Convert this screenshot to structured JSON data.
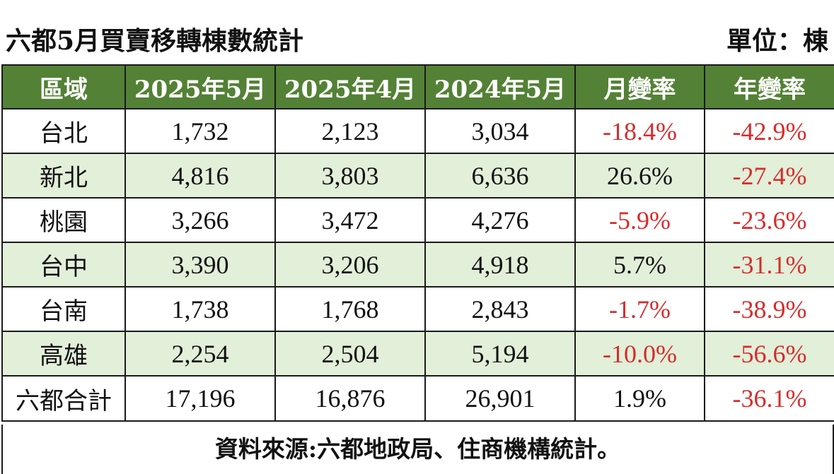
{
  "title": "六都5月買賣移轉棟數統計",
  "unit": "單位：棟",
  "source": "資料來源:六都地政局、住商機構統計。",
  "colors": {
    "header_bg": "#538135",
    "header_text": "#ffffff",
    "alt_row_bg": "#e2efd9",
    "negative": "#d72c2c",
    "text": "#111111"
  },
  "chart_data": {
    "type": "table",
    "title": "六都5月買賣移轉棟數統計",
    "unit": "單位：棟",
    "columns": [
      "區域",
      "2025年5月",
      "2025年4月",
      "2024年5月",
      "月變率",
      "年變率"
    ],
    "rows": [
      {
        "region": "台北",
        "may2025": "1,732",
        "apr2025": "2,123",
        "may2024": "3,034",
        "mom": "-18.4%",
        "yoy": "-42.9%",
        "mom_neg": true,
        "yoy_neg": true
      },
      {
        "region": "新北",
        "may2025": "4,816",
        "apr2025": "3,803",
        "may2024": "6,636",
        "mom": "26.6%",
        "yoy": "-27.4%",
        "mom_neg": false,
        "yoy_neg": true
      },
      {
        "region": "桃園",
        "may2025": "3,266",
        "apr2025": "3,472",
        "may2024": "4,276",
        "mom": "-5.9%",
        "yoy": "-23.6%",
        "mom_neg": true,
        "yoy_neg": true
      },
      {
        "region": "台中",
        "may2025": "3,390",
        "apr2025": "3,206",
        "may2024": "4,918",
        "mom": "5.7%",
        "yoy": "-31.1%",
        "mom_neg": false,
        "yoy_neg": true
      },
      {
        "region": "台南",
        "may2025": "1,738",
        "apr2025": "1,768",
        "may2024": "2,843",
        "mom": "-1.7%",
        "yoy": "-38.9%",
        "mom_neg": true,
        "yoy_neg": true
      },
      {
        "region": "高雄",
        "may2025": "2,254",
        "apr2025": "2,504",
        "may2024": "5,194",
        "mom": "-10.0%",
        "yoy": "-56.6%",
        "mom_neg": true,
        "yoy_neg": true
      },
      {
        "region": "六都合計",
        "may2025": "17,196",
        "apr2025": "16,876",
        "may2024": "26,901",
        "mom": "1.9%",
        "yoy": "-36.1%",
        "mom_neg": false,
        "yoy_neg": true
      }
    ],
    "source": "資料來源:六都地政局、住商機構統計。"
  }
}
